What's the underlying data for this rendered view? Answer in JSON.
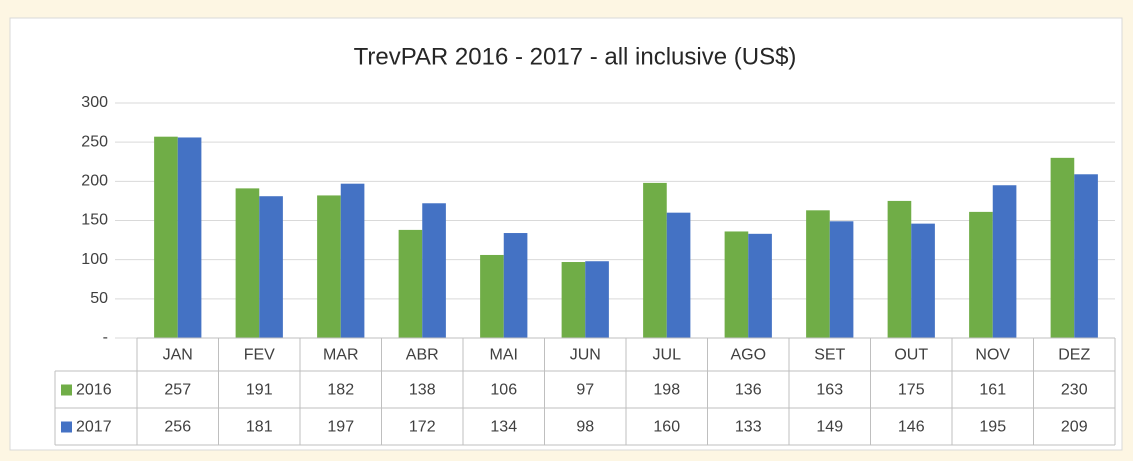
{
  "chart_data": {
    "type": "bar",
    "title": "TrevPAR 2016 - 2017  - all inclusive  (US$)",
    "categories": [
      "JAN",
      "FEV",
      "MAR",
      "ABR",
      "MAI",
      "JUN",
      "JUL",
      "AGO",
      "SET",
      "OUT",
      "NOV",
      "DEZ"
    ],
    "series": [
      {
        "name": "2016",
        "color": "#70ad47",
        "values": [
          257,
          191,
          182,
          138,
          106,
          97,
          198,
          136,
          163,
          175,
          161,
          230
        ]
      },
      {
        "name": "2017",
        "color": "#4472c4",
        "values": [
          256,
          181,
          197,
          172,
          134,
          98,
          160,
          133,
          149,
          146,
          195,
          209
        ]
      }
    ],
    "ylim": [
      0,
      300
    ],
    "yticks": [
      {
        "value": 0,
        "label": "-"
      },
      50,
      100,
      150,
      200,
      250,
      300
    ],
    "grid": true,
    "data_table": true
  }
}
